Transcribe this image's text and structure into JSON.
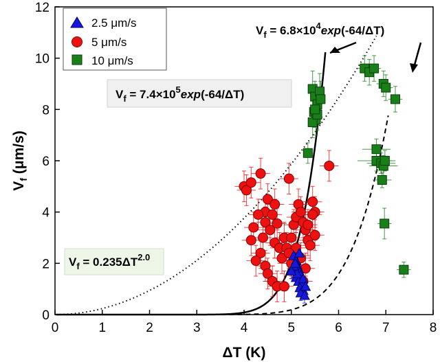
{
  "chart_data": {
    "type": "scatter",
    "xlabel": "ΔT (K)",
    "ylabel": "V_f (μm/s)",
    "xlim": [
      0,
      8
    ],
    "ylim": [
      0,
      12
    ],
    "xticks": [
      0,
      1,
      2,
      3,
      4,
      5,
      6,
      7,
      8
    ],
    "yticks": [
      0,
      2,
      4,
      6,
      8,
      10,
      12
    ],
    "grid": false,
    "legend_position": "top-left",
    "series": [
      {
        "name": "2.5 μm/s",
        "marker": "triangle",
        "color": "#1818dd",
        "points": [
          [
            5.05,
            2.3
          ],
          [
            5.1,
            2.1
          ],
          [
            5.12,
            1.95
          ],
          [
            5.15,
            1.8
          ],
          [
            5.18,
            1.65
          ],
          [
            5.2,
            1.55
          ],
          [
            5.1,
            1.45
          ],
          [
            5.15,
            1.3
          ],
          [
            5.22,
            1.2
          ],
          [
            5.18,
            1.05
          ],
          [
            5.25,
            0.95
          ],
          [
            5.2,
            0.85
          ],
          [
            5.28,
            0.75
          ],
          [
            5.12,
            1.6
          ],
          [
            5.05,
            1.9
          ],
          [
            5.0,
            1.7
          ],
          [
            5.25,
            1.4
          ],
          [
            5.3,
            1.1
          ],
          [
            5.17,
            2.4
          ],
          [
            5.08,
            2.0
          ]
        ],
        "x_err": [
          0.08,
          0.08,
          0.08,
          0.08,
          0.08,
          0.08,
          0.08,
          0.08,
          0.08,
          0.08,
          0.08,
          0.08,
          0.08,
          0.08,
          0.08,
          0.08,
          0.08,
          0.08,
          0.08,
          0.08
        ],
        "y_err": [
          0.3,
          0.3,
          0.3,
          0.3,
          0.3,
          0.3,
          0.3,
          0.3,
          0.3,
          0.3,
          0.3,
          0.3,
          0.3,
          0.3,
          0.3,
          0.3,
          0.3,
          0.3,
          0.3,
          0.3
        ]
      },
      {
        "name": "5 μm/s",
        "marker": "circle",
        "color": "#ee1111",
        "points": [
          [
            4.0,
            5.0
          ],
          [
            4.05,
            4.85
          ],
          [
            4.15,
            5.15
          ],
          [
            4.35,
            5.5
          ],
          [
            4.45,
            4.0
          ],
          [
            4.45,
            3.6
          ],
          [
            4.5,
            4.5
          ],
          [
            4.55,
            3.3
          ],
          [
            4.6,
            3.9
          ],
          [
            4.65,
            4.3
          ],
          [
            4.7,
            3.55
          ],
          [
            4.3,
            3.9
          ],
          [
            4.2,
            3.4
          ],
          [
            4.15,
            2.9
          ],
          [
            4.35,
            2.4
          ],
          [
            4.45,
            1.9
          ],
          [
            4.5,
            1.6
          ],
          [
            4.65,
            2.8
          ],
          [
            4.75,
            2.6
          ],
          [
            4.8,
            2.2
          ],
          [
            4.85,
            3.0
          ],
          [
            4.9,
            2.6
          ],
          [
            4.95,
            5.3
          ],
          [
            5.0,
            3.0
          ],
          [
            5.05,
            3.5
          ],
          [
            5.1,
            3.8
          ],
          [
            5.15,
            4.3
          ],
          [
            5.2,
            4.0
          ],
          [
            5.25,
            3.6
          ],
          [
            5.3,
            3.3
          ],
          [
            5.35,
            2.9
          ],
          [
            5.4,
            2.7
          ],
          [
            5.45,
            4.4
          ],
          [
            5.5,
            3.1
          ],
          [
            5.1,
            2.6
          ],
          [
            5.2,
            2.2
          ],
          [
            5.3,
            1.8
          ],
          [
            4.95,
            2.4
          ],
          [
            4.6,
            1.3
          ],
          [
            4.7,
            1.1
          ],
          [
            4.85,
            1.1
          ],
          [
            5.0,
            2.0
          ],
          [
            5.15,
            1.5
          ],
          [
            5.25,
            1.3
          ],
          [
            5.35,
            3.5
          ],
          [
            5.5,
            4.0
          ],
          [
            5.8,
            5.8
          ],
          [
            4.25,
            2.1
          ],
          [
            4.4,
            3.0
          ],
          [
            5.45,
            3.9
          ]
        ],
        "x_err": [
          0.2,
          0.2,
          0.2,
          0.2,
          0.2,
          0.2,
          0.2,
          0.2,
          0.2,
          0.2,
          0.2,
          0.2,
          0.2,
          0.2,
          0.2,
          0.2,
          0.2,
          0.2,
          0.2,
          0.2,
          0.2,
          0.2,
          0.2,
          0.2,
          0.2,
          0.2,
          0.2,
          0.2,
          0.2,
          0.2,
          0.2,
          0.2,
          0.2,
          0.2,
          0.2,
          0.2,
          0.2,
          0.2,
          0.2,
          0.2,
          0.2,
          0.2,
          0.2,
          0.2,
          0.2,
          0.2,
          0.2,
          0.2,
          0.2,
          0.2
        ],
        "y_err": [
          0.6,
          0.6,
          0.6,
          0.6,
          0.6,
          0.6,
          0.6,
          0.6,
          0.6,
          0.6,
          0.6,
          0.6,
          0.6,
          0.6,
          0.6,
          0.6,
          0.6,
          0.6,
          0.6,
          0.6,
          0.6,
          0.6,
          0.6,
          0.6,
          0.6,
          0.6,
          0.6,
          0.6,
          0.6,
          0.6,
          0.6,
          0.6,
          0.6,
          0.6,
          0.6,
          0.6,
          0.6,
          0.6,
          0.6,
          0.6,
          0.6,
          0.6,
          0.6,
          0.6,
          0.6,
          0.6,
          0.6,
          0.6,
          0.6,
          0.6
        ]
      },
      {
        "name": "10 μm/s",
        "marker": "square",
        "color": "#198019",
        "points": [
          [
            5.45,
            8.8
          ],
          [
            5.5,
            8.5
          ],
          [
            5.55,
            8.2
          ],
          [
            5.48,
            7.9
          ],
          [
            5.52,
            7.6
          ],
          [
            5.45,
            7.5
          ],
          [
            5.6,
            8.7
          ],
          [
            5.55,
            7.8
          ],
          [
            5.62,
            8.4
          ],
          [
            5.5,
            8.0
          ],
          [
            5.35,
            6.3
          ],
          [
            6.55,
            9.6
          ],
          [
            6.65,
            9.45
          ],
          [
            6.75,
            9.6
          ],
          [
            6.95,
            9.0
          ],
          [
            7.0,
            8.85
          ],
          [
            7.2,
            8.4
          ],
          [
            6.8,
            6.45
          ],
          [
            6.8,
            6.0
          ],
          [
            6.9,
            5.9
          ],
          [
            6.95,
            5.8
          ],
          [
            6.92,
            5.25
          ],
          [
            6.97,
            3.55
          ],
          [
            7.38,
            1.75
          ],
          [
            6.98,
            6.0
          ]
        ],
        "x_err": [
          0.05,
          0.05,
          0.05,
          0.05,
          0.05,
          0.05,
          0.05,
          0.05,
          0.05,
          0.05,
          0.1,
          0.15,
          0.15,
          0.15,
          0.15,
          0.15,
          0.15,
          0.3,
          0.4,
          0.3,
          0.3,
          0.2,
          0.15,
          0.15,
          0.15
        ],
        "y_err": [
          0.7,
          0.6,
          0.6,
          0.6,
          0.6,
          0.6,
          0.7,
          0.6,
          0.7,
          0.6,
          0.4,
          0.5,
          0.5,
          0.5,
          0.5,
          0.5,
          0.5,
          0.4,
          0.4,
          0.4,
          0.4,
          0.3,
          0.6,
          0.3,
          0.4
        ]
      }
    ],
    "fits": [
      {
        "label": "V_f = 0.235ΔT^2.0",
        "a": 0.235,
        "b": 2.0,
        "form": "power",
        "xmax": 6.8,
        "style": "dotted"
      },
      {
        "label": "V_f = 7.4×10^5 exp(-64/ΔT)",
        "a": 740000,
        "k": 64,
        "form": "exp",
        "xmax": 5.72,
        "style": "solid"
      },
      {
        "label": "V_f = 6.8×10^4 exp(-64/ΔT)",
        "a": 68000,
        "k": 64,
        "form": "exp",
        "xmax": 7.05,
        "style": "dashed"
      }
    ],
    "legend": [
      "2.5 μm/s",
      "5 μm/s",
      "10 μm/s"
    ],
    "annotations": {
      "eq_power": {
        "main": "V",
        "sub": "f",
        "rest": " = 0.235ΔT",
        "sup": "2.0"
      },
      "eq_exp1": {
        "main": "V",
        "sub": "f",
        "rest": " = 7.4×10",
        "sup": "5",
        "tail_italic": "exp",
        "tail": "(-64/ΔT)"
      },
      "eq_exp2": {
        "main": "V",
        "sub": "f",
        "rest": " = 6.8×10",
        "sup": "4",
        "tail_italic": "exp",
        "tail": "(-64/ΔT)"
      }
    }
  }
}
